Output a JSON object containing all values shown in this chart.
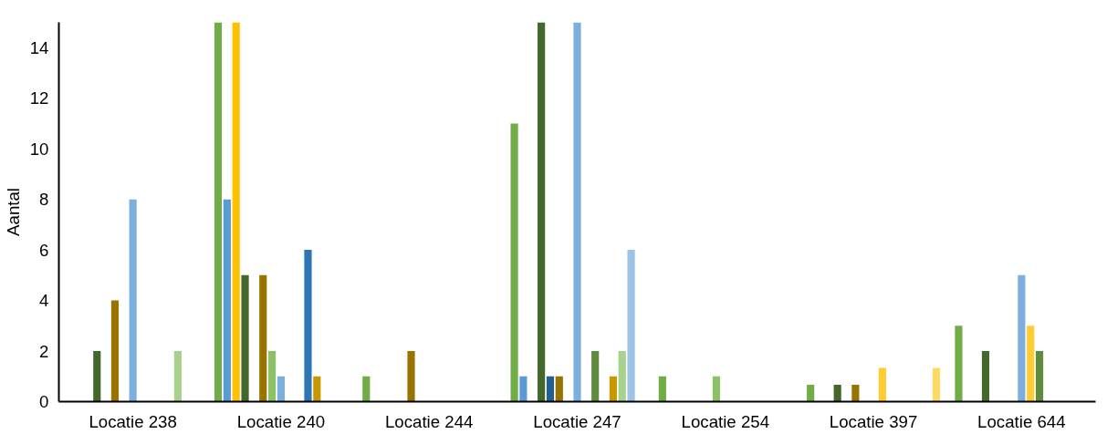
{
  "chart_data": {
    "type": "bar",
    "ylabel": "Aantal",
    "categories": [
      "Locatie 238",
      "Locatie 240",
      "Locatie 244",
      "Locatie 247",
      "Locatie 254",
      "Locatie 397",
      "Locatie 644"
    ],
    "ylim": [
      0,
      15
    ],
    "yticks": [
      0,
      2,
      4,
      6,
      8,
      10,
      12,
      14
    ],
    "grid": false,
    "series": [
      {
        "color": "#70ad47",
        "values": [
          0,
          15,
          1,
          11,
          1,
          0.67,
          3
        ]
      },
      {
        "color": "#5b9bd5",
        "values": [
          0,
          8,
          0,
          1,
          0,
          0,
          0
        ]
      },
      {
        "color": "#ffc000",
        "values": [
          0,
          15,
          0,
          0,
          0,
          0,
          0
        ]
      },
      {
        "color": "#43682b",
        "values": [
          2,
          5,
          0,
          15,
          0,
          0.67,
          2
        ]
      },
      {
        "color": "#255e91",
        "values": [
          0,
          0,
          0,
          1,
          0,
          0,
          0
        ]
      },
      {
        "color": "#997300",
        "values": [
          4,
          5,
          2,
          1,
          0,
          0.67,
          0
        ]
      },
      {
        "color": "#8cc168",
        "values": [
          0,
          2,
          0,
          0,
          1,
          0,
          0
        ]
      },
      {
        "color": "#7cafdd",
        "values": [
          8,
          1,
          0,
          15,
          0,
          0,
          5
        ]
      },
      {
        "color": "#ffcd33",
        "values": [
          0,
          0,
          0,
          0,
          0,
          1.33,
          3
        ]
      },
      {
        "color": "#5f8b3e",
        "values": [
          0,
          0,
          0,
          2,
          0,
          0,
          2
        ]
      },
      {
        "color": "#2e75b6",
        "values": [
          0,
          6,
          0,
          0,
          0,
          0,
          0
        ]
      },
      {
        "color": "#c89800",
        "values": [
          0,
          1,
          0,
          1,
          0,
          0,
          0
        ]
      },
      {
        "color": "#a9d18e",
        "values": [
          2,
          0,
          0,
          2,
          0,
          0,
          0
        ]
      },
      {
        "color": "#9dc3e6",
        "values": [
          0,
          0,
          0,
          6,
          0,
          0,
          0
        ]
      },
      {
        "color": "#ffd966",
        "values": [
          0,
          0,
          0,
          0,
          0,
          1.33,
          0
        ]
      }
    ]
  }
}
